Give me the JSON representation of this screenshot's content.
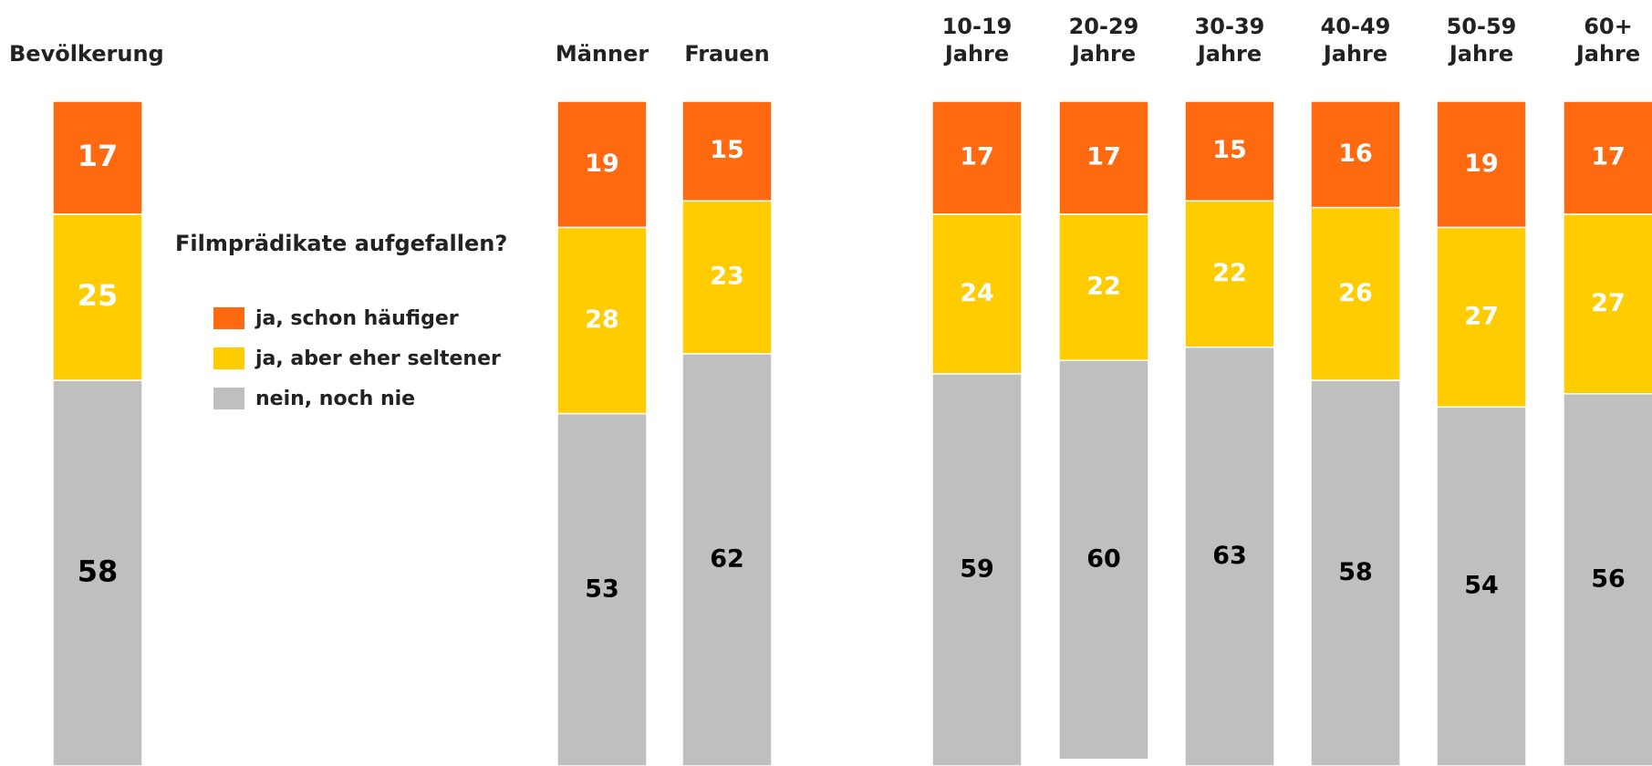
{
  "chart_data": {
    "type": "stacked_bar",
    "legend_title": "Filmprädikate aufgefallen?",
    "categories": [
      "Bevölkerung",
      "Männer",
      "Frauen",
      "10-19 Jahre",
      "20-29 Jahre",
      "30-39 Jahre",
      "40-49 Jahre",
      "50-59 Jahre",
      "60+ Jahre"
    ],
    "series": [
      {
        "name": "ja, schon häufiger",
        "color": "#ff6a10",
        "label_color": "#ffffff",
        "values": [
          17,
          19,
          15,
          17,
          17,
          15,
          16,
          19,
          17
        ]
      },
      {
        "name": "ja, aber eher seltener",
        "color": "#ffcc00",
        "label_color": "#ffffff",
        "values": [
          25,
          28,
          23,
          24,
          22,
          22,
          26,
          27,
          27
        ]
      },
      {
        "name": "nein, noch nie",
        "color": "#bfbfbf",
        "label_color": "#000000",
        "values": [
          58,
          53,
          62,
          59,
          60,
          63,
          58,
          54,
          56
        ]
      }
    ],
    "ylim": [
      0,
      100
    ]
  }
}
